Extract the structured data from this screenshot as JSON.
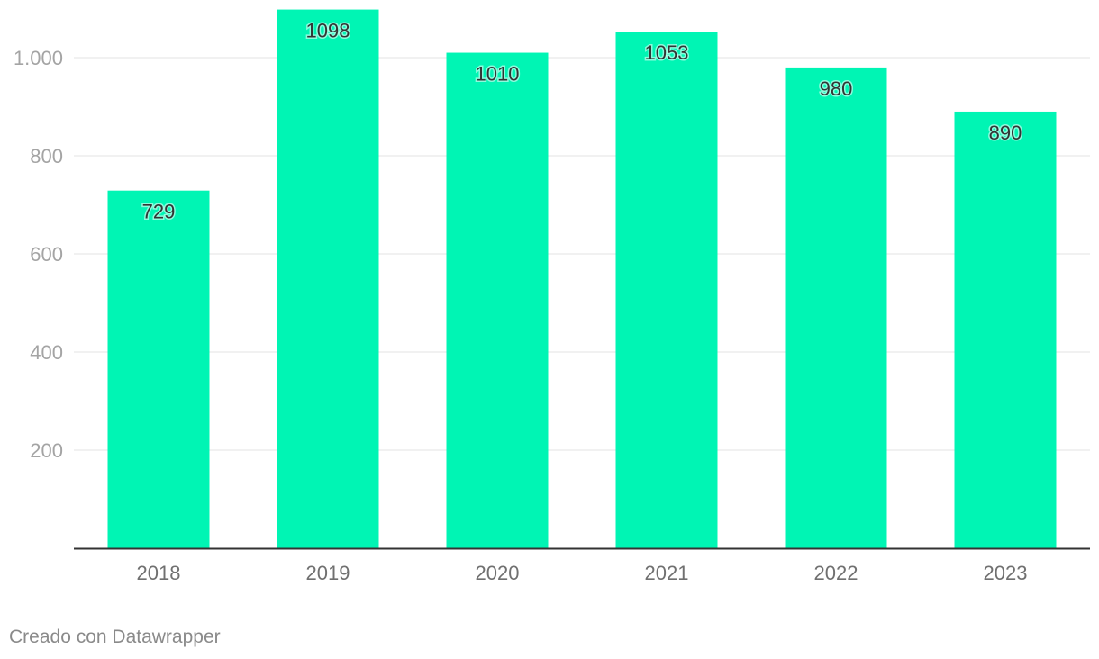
{
  "chart_data": {
    "type": "bar",
    "title": "",
    "xlabel": "",
    "ylabel": "",
    "categories": [
      "2018",
      "2019",
      "2020",
      "2021",
      "2022",
      "2023"
    ],
    "values": [
      729,
      1098,
      1010,
      1053,
      980,
      890
    ],
    "value_labels": [
      "729",
      "1098",
      "1010",
      "1053",
      "980",
      "890"
    ],
    "ylim": [
      0,
      1000
    ],
    "yticks": [
      200,
      400,
      600,
      800,
      1000
    ],
    "ytick_labels": [
      "200",
      "400",
      "600",
      "800",
      "1.000"
    ],
    "grid": true,
    "bar_color": "#00f5b4"
  },
  "footer": {
    "credit": "Creado con Datawrapper"
  }
}
